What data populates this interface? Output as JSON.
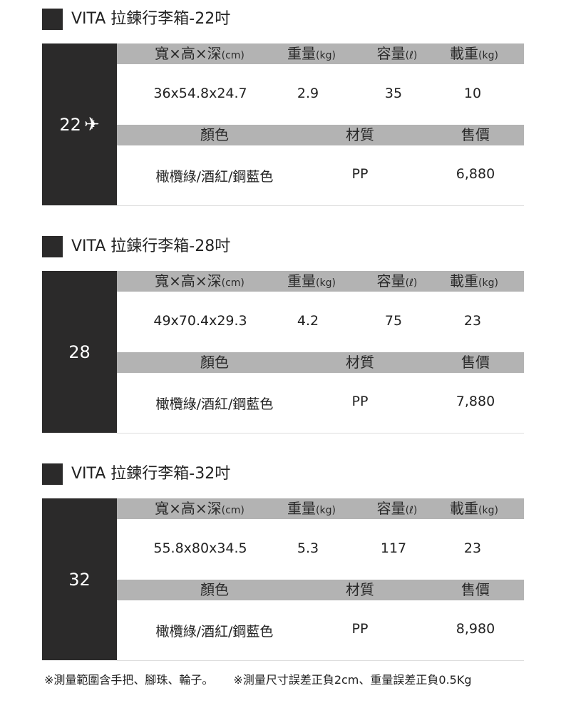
{
  "headers": {
    "dimensions": "寬×高×深",
    "dimensions_unit": "(cm)",
    "weight": "重量",
    "weight_unit": "(kg)",
    "capacity": "容量",
    "capacity_unit": "(ℓ)",
    "load": "載重",
    "load_unit": "(kg)",
    "color": "顏色",
    "material": "材質",
    "price": "售價"
  },
  "products": [
    {
      "title": "VITA 拉鍊行李箱-22吋",
      "size": "22",
      "icon": "airplane-icon",
      "dimensions": "36x54.8x24.7",
      "weight": "2.9",
      "capacity": "35",
      "load": "10",
      "color": "橄欖綠/酒紅/鋼藍色",
      "material": "PP",
      "price": "6,880"
    },
    {
      "title": "VITA 拉鍊行李箱-28吋",
      "size": "28",
      "dimensions": "49x70.4x29.3",
      "weight": "4.2",
      "capacity": "75",
      "load": "23",
      "color": "橄欖綠/酒紅/鋼藍色",
      "material": "PP",
      "price": "7,880"
    },
    {
      "title": "VITA 拉鍊行李箱-32吋",
      "size": "32",
      "dimensions": "55.8x80x34.5",
      "weight": "5.3",
      "capacity": "117",
      "load": "23",
      "color": "橄欖綠/酒紅/鋼藍色",
      "material": "PP",
      "price": "8,980"
    }
  ],
  "footer": {
    "note1": "※測量範圍含手把、腳珠、輪子。",
    "note2": "※測量尺寸誤差正負2cm、重量誤差正負0.5Kg"
  }
}
